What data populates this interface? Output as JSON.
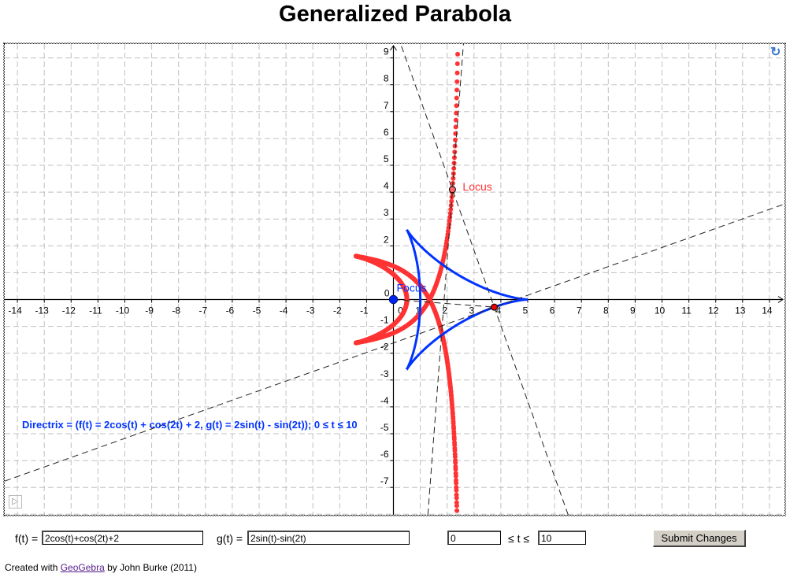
{
  "title": "Generalized Parabola",
  "graph": {
    "x_ticks": [
      -14,
      -13,
      -12,
      -11,
      -10,
      -9,
      -8,
      -7,
      -6,
      -5,
      -4,
      -3,
      -2,
      -1,
      1,
      2,
      3,
      4,
      5,
      6,
      7,
      8,
      9,
      10,
      11,
      12,
      13,
      14
    ],
    "y_ticks": [
      -7,
      -6,
      -5,
      -4,
      -3,
      -2,
      -1,
      1,
      2,
      3,
      4,
      5,
      6,
      7,
      8,
      9
    ],
    "origin_label": "0",
    "focus_label": "Focus",
    "locus_label": "Locus",
    "directrix_text": "Directrix = (f(t) = 2cos(t) + cos(2t) + 2, g(t) = 2sin(t) - sin(2t));  0 ≤ t ≤ 10",
    "t_min": 0,
    "t_max": 10,
    "colors": {
      "directrix": "#0033ff",
      "locus": "#ff3333",
      "grid": "#c0c0c0"
    }
  },
  "controls": {
    "f_label": "f(t) =",
    "f_value": "2cos(t)+cos(2t)+2",
    "g_label": "g(t) =",
    "g_value": "2sin(t)-sin(2t)",
    "t_min_value": "0",
    "t_range_label": "≤ t ≤",
    "t_max_value": "10",
    "submit_label": "Submit Changes"
  },
  "footer": {
    "prefix": "Created with",
    "link": "GeoGebra",
    "suffix": "by John Burke (2011)"
  }
}
